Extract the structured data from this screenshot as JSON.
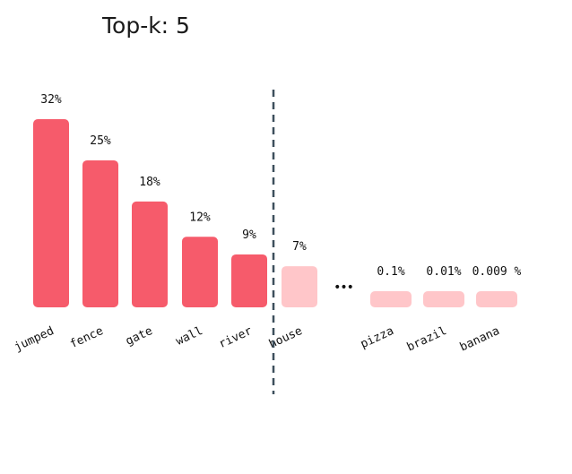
{
  "title": "Top-k: 5",
  "ellipsis": "•••",
  "chart_data": {
    "type": "bar",
    "title": "Top-k: 5",
    "top_k": 5,
    "categories": [
      "jumped",
      "fence",
      "gate",
      "wall",
      "river",
      "house",
      "pizza",
      "brazil",
      "banana"
    ],
    "values": [
      32,
      25,
      18,
      12,
      9,
      7,
      0.1,
      0.01,
      0.009
    ],
    "value_labels": [
      "32%",
      "25%",
      "18%",
      "12%",
      "9%",
      "7%",
      "0.1%",
      "0.01%",
      "0.009 %"
    ],
    "unit": "%",
    "xlabel": "",
    "ylabel": "",
    "grid": false,
    "colors": {
      "selected": "#f65b6b",
      "unselected": "#ffc6c9",
      "cutoff_line": "#3d4f5c"
    }
  }
}
